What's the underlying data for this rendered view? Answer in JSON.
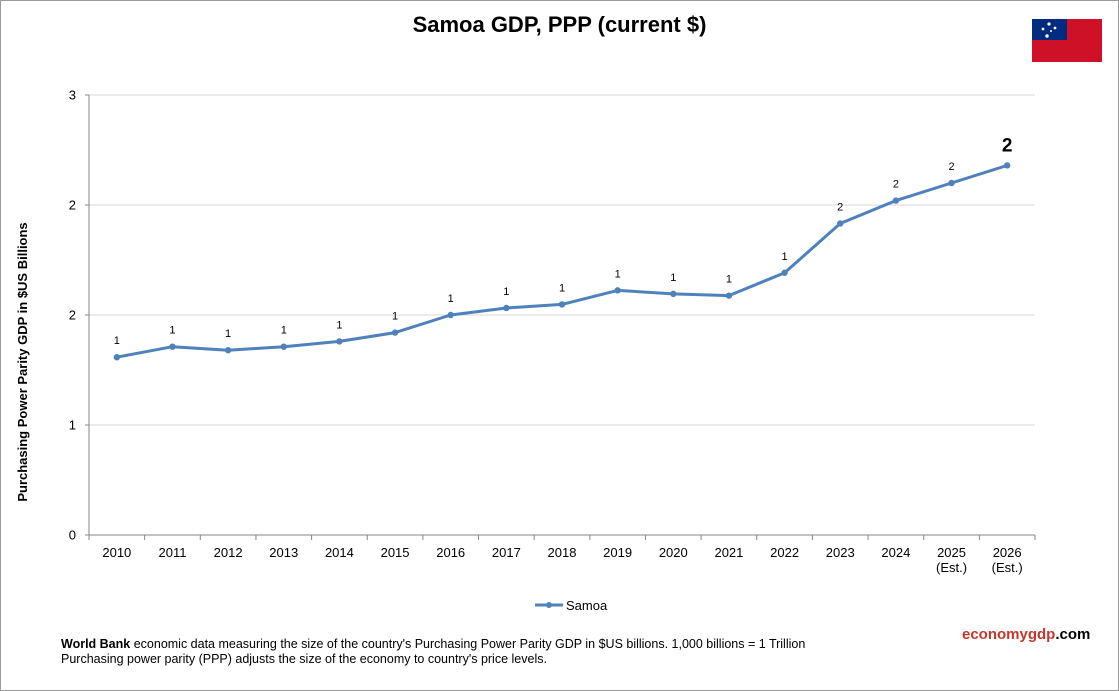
{
  "title": "Samoa GDP, PPP (current $)",
  "ylabel": "Purchasing Power Parity GDP in $US Billions",
  "legend_label": "Samoa",
  "footer": {
    "source_bold": "World Bank",
    "line1_rest": " economic data measuring the size of the country's Purchasing Power Parity GDP in $US billions. 1,000 billions = 1 Trillion",
    "line2": "Purchasing power parity (PPP) adjusts the size of the economy to country's price levels."
  },
  "brand": {
    "part1": "economygdp",
    "part2": ".com"
  },
  "colors": {
    "line": "#4f81bd",
    "grid": "#d9d9d9",
    "flag_red": "#ce1126",
    "flag_blue": "#002b7f"
  },
  "chart_data": {
    "type": "line",
    "title": "Samoa GDP, PPP (current $)",
    "xlabel": "",
    "ylabel": "Purchasing Power Parity GDP in $US Billions",
    "categories": [
      "2010",
      "2011",
      "2012",
      "2013",
      "2014",
      "2015",
      "2016",
      "2017",
      "2018",
      "2019",
      "2020",
      "2021",
      "2022",
      "2023",
      "2024",
      "2025 (Est.)",
      "2026 (Est.)"
    ],
    "y_tick_labels": [
      "0",
      "1",
      "2",
      "2",
      "3"
    ],
    "ylim": [
      0,
      2.5
    ],
    "grid": true,
    "legend_position": "bottom",
    "series": [
      {
        "name": "Samoa",
        "values": [
          1.01,
          1.07,
          1.05,
          1.07,
          1.1,
          1.15,
          1.25,
          1.29,
          1.31,
          1.39,
          1.37,
          1.36,
          1.49,
          1.77,
          1.9,
          2.0,
          2.1
        ],
        "data_labels": [
          "1",
          "1",
          "1",
          "1",
          "1",
          "1",
          "1",
          "1",
          "1",
          "1",
          "1",
          "1",
          "1",
          "2",
          "2",
          "2",
          "2"
        ]
      }
    ]
  }
}
